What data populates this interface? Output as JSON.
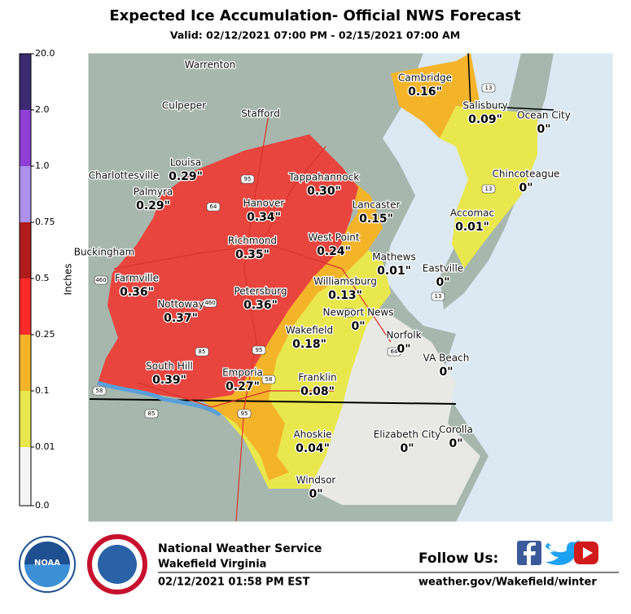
{
  "header": {
    "title": "Expected Ice Accumulation- Official NWS Forecast",
    "subtitle": "Valid: 02/12/2021 07:00 PM - 02/15/2021 07:00 AM"
  },
  "legend": {
    "label": "Inches",
    "ticks": [
      "20.0",
      "2.0",
      "1.0",
      "0.75",
      "0.5",
      "0.25",
      "0.1",
      "0.01",
      "0.0"
    ]
  },
  "places": [
    {
      "name": "Warrenton"
    },
    {
      "name": "Culpeper"
    },
    {
      "name": "Stafford"
    },
    {
      "name": "Charlottesville"
    },
    {
      "name": "Louisa",
      "value": "0.29\""
    },
    {
      "name": "Palmyra",
      "value": "0.29\""
    },
    {
      "name": "Tappahannock",
      "value": "0.30\""
    },
    {
      "name": "Hanover",
      "value": "0.34\""
    },
    {
      "name": "Lancaster",
      "value": "0.15\""
    },
    {
      "name": "Richmond",
      "value": "0.35\""
    },
    {
      "name": "West Point",
      "value": "0.24\""
    },
    {
      "name": "Buckingham"
    },
    {
      "name": "Farmville",
      "value": "0.36\""
    },
    {
      "name": "Mathews",
      "value": "0.01\""
    },
    {
      "name": "Eastville",
      "value": "0\""
    },
    {
      "name": "Williamsburg",
      "value": "0.13\""
    },
    {
      "name": "Nottoway",
      "value": "0.37\""
    },
    {
      "name": "Petersburg",
      "value": "0.36\""
    },
    {
      "name": "Newport News",
      "value": "0\""
    },
    {
      "name": "Wakefield",
      "value": "0.18\""
    },
    {
      "name": "Norfolk",
      "value": "0\""
    },
    {
      "name": "VA Beach",
      "value": "0\""
    },
    {
      "name": "South Hill",
      "value": "0.39\""
    },
    {
      "name": "Emporia",
      "value": "0.27\""
    },
    {
      "name": "Franklin",
      "value": "0.08\""
    },
    {
      "name": "Ahoskie",
      "value": "0.04\""
    },
    {
      "name": "Elizabeth City",
      "value": "0\""
    },
    {
      "name": "Corolla",
      "value": "0\""
    },
    {
      "name": "Windsor",
      "value": "0\""
    },
    {
      "name": "Cambridge",
      "value": "0.16\""
    },
    {
      "name": "Salisbury",
      "value": "0.09\""
    },
    {
      "name": "Ocean City",
      "value": "0\""
    },
    {
      "name": "Chincoteague",
      "value": "0\""
    },
    {
      "name": "Accomac",
      "value": "0.01\""
    }
  ],
  "shields": [
    "95",
    "64",
    "64",
    "85",
    "85",
    "95",
    "95",
    "460",
    "460",
    "58",
    "58",
    "13",
    "13",
    "13",
    "64"
  ],
  "footer": {
    "org": "National Weather Service",
    "office": "Wakefield Virginia",
    "issued": "02/12/2021 01:58 PM EST",
    "follow": "Follow Us:",
    "url": "weather.gov/Wakefield/winter",
    "noaa": "NOAA"
  }
}
